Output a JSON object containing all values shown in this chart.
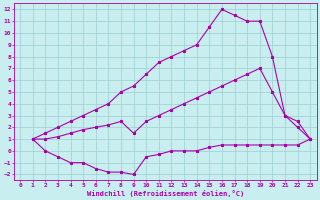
{
  "xlabel": "Windchill (Refroidissement éolien,°C)",
  "xlim": [
    -0.5,
    23.5
  ],
  "ylim": [
    -2.5,
    12.5
  ],
  "xticks": [
    0,
    1,
    2,
    3,
    4,
    5,
    6,
    7,
    8,
    9,
    10,
    11,
    12,
    13,
    14,
    15,
    16,
    17,
    18,
    19,
    20,
    21,
    22,
    23
  ],
  "yticks": [
    -2,
    -1,
    0,
    1,
    2,
    3,
    4,
    5,
    6,
    7,
    8,
    9,
    10,
    11,
    12
  ],
  "bg_color": "#c8eef0",
  "line_color": "#aa00aa",
  "grid_color": "#9ecece",
  "line_top_x": [
    1,
    2,
    3,
    4,
    5,
    6,
    7,
    8,
    9,
    10,
    11,
    12,
    13,
    14,
    15,
    16,
    17,
    18,
    19,
    20,
    21,
    22,
    23
  ],
  "line_top_y": [
    1,
    1.5,
    2,
    2.5,
    3,
    3.5,
    4,
    5,
    5.5,
    6.5,
    7.5,
    8,
    8.5,
    9,
    10.5,
    12,
    11.5,
    11,
    11,
    8,
    3,
    2,
    1
  ],
  "line_bot_x": [
    1,
    2,
    3,
    4,
    5,
    6,
    7,
    8,
    9,
    10,
    11,
    12,
    13,
    14,
    15,
    16,
    17,
    18,
    19,
    20,
    21,
    22,
    23
  ],
  "line_bot_y": [
    1,
    0.0,
    -0.5,
    -1.0,
    -1.0,
    -1.5,
    -1.8,
    -1.8,
    -2.0,
    -0.5,
    -0.3,
    0.0,
    0.0,
    0.0,
    0.3,
    0.5,
    0.5,
    0.5,
    0.5,
    0.5,
    0.5,
    0.5,
    1.0
  ],
  "line_mid_x": [
    1,
    2,
    3,
    4,
    5,
    6,
    7,
    8,
    9,
    10,
    11,
    12,
    13,
    14,
    15,
    16,
    17,
    18,
    19,
    20,
    21,
    22,
    23
  ],
  "line_mid_y": [
    1,
    1.0,
    1.2,
    1.5,
    1.8,
    2.0,
    2.2,
    2.5,
    1.5,
    2.5,
    3.0,
    3.5,
    4.0,
    4.5,
    5.0,
    5.5,
    6.0,
    6.5,
    7.0,
    5.0,
    3.0,
    2.5,
    1.0
  ]
}
